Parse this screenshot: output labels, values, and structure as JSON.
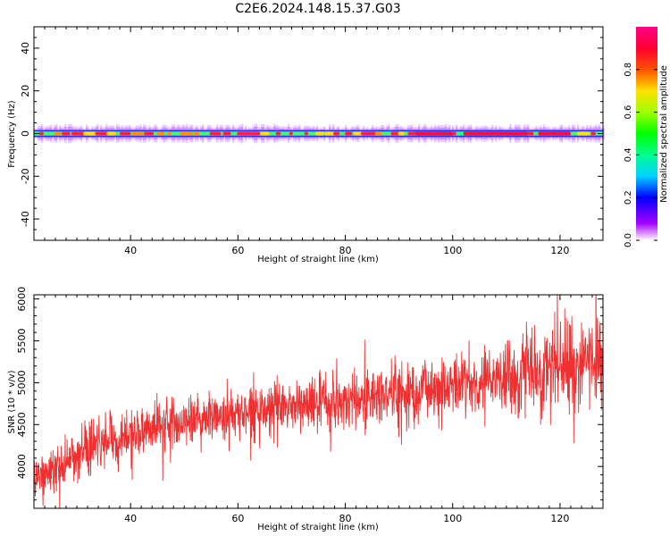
{
  "figure": {
    "title": "C2E6.2024.148.15.37.G03"
  },
  "colors": {
    "snr_line": "#f03030",
    "axes": "#000000"
  },
  "chart_data": [
    {
      "type": "heatmap",
      "xlabel": "Height of straight line (km)",
      "ylabel": "Frequency (Hz)",
      "xlim": [
        22,
        128
      ],
      "ylim": [
        -50,
        50
      ],
      "xticks": [
        40,
        60,
        80,
        100,
        120
      ],
      "yticks": [
        -40,
        -20,
        0,
        20,
        40
      ],
      "grid": false,
      "description_values": {
        "band_center_hz": 0,
        "core_halfwidth_hz": 1,
        "outer_halfwidth_hz": 4
      },
      "colorbar": {
        "label": "Normalized spectral amplitude",
        "range": [
          0.0,
          1.0
        ],
        "ticks": [
          0.0,
          0.2,
          0.4,
          0.6,
          0.8
        ],
        "colormap": "gist_rainbow_r"
      }
    },
    {
      "type": "line",
      "xlabel": "Height of straight line (km)",
      "ylabel": "SNR (10 * v/v)",
      "xlim": [
        22,
        128
      ],
      "ylim": [
        3500,
        6050
      ],
      "xticks": [
        40,
        60,
        80,
        100,
        120
      ],
      "yticks": [
        4000,
        4500,
        5000,
        5500,
        6000
      ],
      "grid": false,
      "series": [
        {
          "trend_x": [
            22,
            30,
            40,
            50,
            60,
            70,
            80,
            90,
            100,
            110,
            120,
            128
          ],
          "trend_y": [
            3850,
            4150,
            4400,
            4550,
            4640,
            4720,
            4780,
            4880,
            4980,
            5080,
            5200,
            5280
          ],
          "noise_std": [
            150,
            150,
            140,
            150,
            150,
            160,
            170,
            200,
            220,
            250,
            280,
            300
          ]
        }
      ]
    }
  ]
}
